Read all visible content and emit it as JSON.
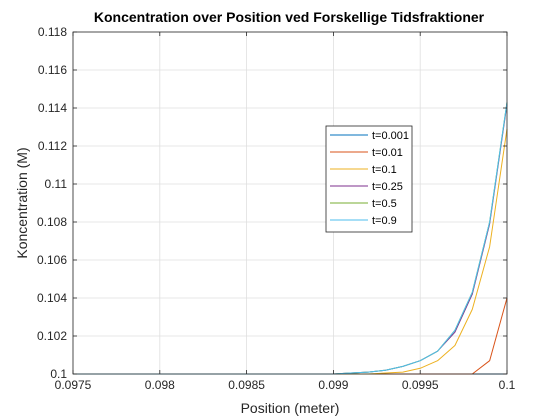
{
  "chart_data": {
    "type": "line",
    "title": "Koncentration over Position ved Forskellige Tidsfraktioner",
    "xlabel": "Position (meter)",
    "ylabel": "Koncentration (M)",
    "xlim": [
      0.0975,
      0.1
    ],
    "ylim": [
      0.1,
      0.118
    ],
    "xticks": [
      0.0975,
      0.098,
      0.0985,
      0.099,
      0.0995,
      0.1
    ],
    "xtick_labels": [
      "0.0975",
      "0.098",
      "0.0985",
      "0.099",
      "0.0995",
      "0.1"
    ],
    "yticks": [
      0.1,
      0.102,
      0.104,
      0.106,
      0.108,
      0.11,
      0.112,
      0.114,
      0.116,
      0.118
    ],
    "ytick_labels": [
      "0.1",
      "0.102",
      "0.104",
      "0.106",
      "0.108",
      "0.11",
      "0.112",
      "0.114",
      "0.116",
      "0.118"
    ],
    "grid": true,
    "legend_position": "center-right",
    "x": [
      0.0975,
      0.0976,
      0.0977,
      0.0978,
      0.0979,
      0.098,
      0.0981,
      0.0982,
      0.0983,
      0.0984,
      0.0985,
      0.0986,
      0.0987,
      0.0988,
      0.0989,
      0.099,
      0.0991,
      0.0992,
      0.0993,
      0.0994,
      0.0995,
      0.0996,
      0.0997,
      0.0998,
      0.0999,
      0.1
    ],
    "series": [
      {
        "name": "t=0.001",
        "color": "#0072BD",
        "values": [
          0.1,
          0.1,
          0.1,
          0.1,
          0.1,
          0.1,
          0.1,
          0.1,
          0.1,
          0.1,
          0.1,
          0.1,
          0.1,
          0.1,
          0.1,
          0.1,
          0.1,
          0.1,
          0.1,
          0.1,
          0.1,
          0.1,
          0.1,
          0.1,
          0.1,
          0.1
        ]
      },
      {
        "name": "t=0.01",
        "color": "#D95319",
        "values": [
          0.1,
          0.1,
          0.1,
          0.1,
          0.1,
          0.1,
          0.1,
          0.1,
          0.1,
          0.1,
          0.1,
          0.1,
          0.1,
          0.1,
          0.1,
          0.1,
          0.1,
          0.1,
          0.1,
          0.1,
          0.1,
          0.1,
          0.1,
          0.1,
          0.1007,
          0.104
        ]
      },
      {
        "name": "t=0.1",
        "color": "#EDB120",
        "values": [
          0.1,
          0.1,
          0.1,
          0.1,
          0.1,
          0.1,
          0.1,
          0.1,
          0.1,
          0.1,
          0.1,
          0.1,
          0.1,
          0.1,
          0.1,
          0.1,
          0.1,
          0.1,
          0.10005,
          0.1001,
          0.1003,
          0.1007,
          0.1015,
          0.1034,
          0.1067,
          0.1129
        ]
      },
      {
        "name": "t=0.25",
        "color": "#7E2F8E",
        "values": [
          0.1,
          0.1,
          0.1,
          0.1,
          0.1,
          0.1,
          0.1,
          0.1,
          0.1,
          0.1,
          0.1,
          0.1,
          0.1,
          0.1,
          0.1,
          0.1,
          0.10005,
          0.1001,
          0.1002,
          0.1004,
          0.1007,
          0.1012,
          0.1022,
          0.1042,
          0.1079,
          0.1142
        ]
      },
      {
        "name": "t=0.5",
        "color": "#77AC30",
        "values": [
          0.1,
          0.1,
          0.1,
          0.1,
          0.1,
          0.1,
          0.1,
          0.1,
          0.1,
          0.1,
          0.1,
          0.1,
          0.1,
          0.1,
          0.1,
          0.1,
          0.10005,
          0.1001,
          0.1002,
          0.1004,
          0.1007,
          0.1012,
          0.1023,
          0.1043,
          0.108,
          0.1143
        ]
      },
      {
        "name": "t=0.9",
        "color": "#4DBEEE",
        "values": [
          0.1,
          0.1,
          0.1,
          0.1,
          0.1,
          0.1,
          0.1,
          0.1,
          0.1,
          0.1,
          0.1,
          0.1,
          0.1,
          0.1,
          0.1,
          0.1,
          0.10005,
          0.1001,
          0.1002,
          0.1004,
          0.1007,
          0.1012,
          0.1023,
          0.1043,
          0.108,
          0.1143
        ]
      }
    ]
  }
}
